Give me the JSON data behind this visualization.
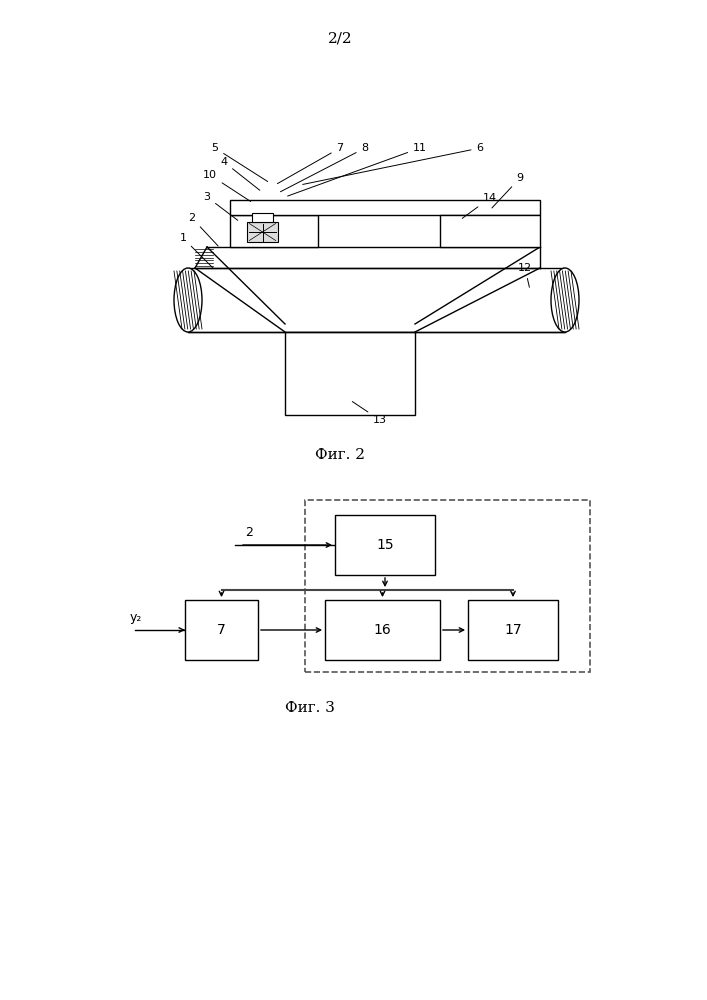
{
  "page_label": "2/2",
  "fig2_label": "Фиг. 2",
  "fig3_label": "Фиг. 3",
  "background": "#ffffff",
  "line_color": "#000000"
}
